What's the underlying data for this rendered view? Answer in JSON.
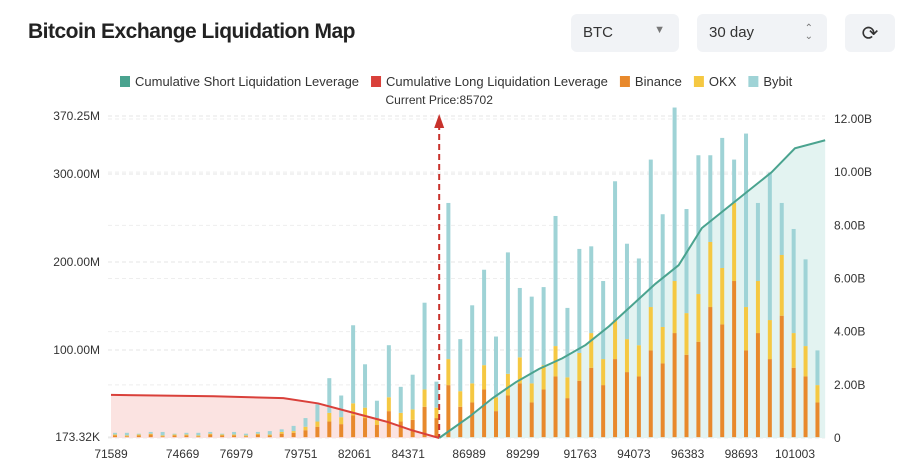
{
  "header": {
    "title": "Bitcoin Exchange Liquidation Map",
    "symbol_select": "BTC",
    "range_select": "30 day",
    "refresh_icon": "refresh-icon"
  },
  "chart_data": {
    "type": "bar",
    "title": "",
    "legend": [
      "Cumulative Short Liquidation Leverage",
      "Cumulative Long Liquidation Leverage",
      "Binance",
      "OKX",
      "Bybit"
    ],
    "legend_placement": "top",
    "colors": {
      "short": "#4aa38f",
      "long": "#d9403a",
      "binance": "#e8892c",
      "okx": "#f5c842",
      "bybit": "#9fd3d6",
      "short_fill": "#e3f3f1",
      "long_fill": "#fbe3e1",
      "price_line": "#c8322c"
    },
    "annotation": "Current Price:85702",
    "current_price": 85702,
    "x_ticks": [
      "71589",
      "74669",
      "76979",
      "79751",
      "82061",
      "84371",
      "86989",
      "89299",
      "91763",
      "94073",
      "96383",
      "98693",
      "101003"
    ],
    "x_range": [
      71589,
      102300
    ],
    "y_left_ticks": [
      "370.25M",
      "300.00M",
      "200.00M",
      "100.00M",
      "173.32K"
    ],
    "y_left_range_M": [
      0.17332,
      370.25
    ],
    "y_right_ticks": [
      "12.00B",
      "10.00B",
      "8.00B",
      "6.00B",
      "4.00B",
      "2.00B",
      "0"
    ],
    "y_right_range_B": [
      0,
      12
    ],
    "grid": true,
    "bar_start": 71589,
    "bar_step": 512,
    "series": [
      {
        "name": "Binance",
        "values": [
          2,
          1,
          2,
          3,
          1,
          2,
          2,
          1,
          3,
          2,
          2,
          1,
          3,
          2,
          4,
          5,
          8,
          12,
          18,
          15,
          25,
          22,
          14,
          30,
          18,
          20,
          35,
          22,
          60,
          35,
          40,
          55,
          30,
          48,
          62,
          40,
          55,
          70,
          45,
          65,
          80,
          60,
          90,
          75,
          70,
          100,
          85,
          120,
          95,
          110,
          150,
          130,
          180,
          100,
          120,
          90,
          140,
          80,
          70,
          40
        ]
      },
      {
        "name": "OKX",
        "values": [
          1,
          1,
          1,
          1,
          1,
          1,
          1,
          1,
          1,
          1,
          1,
          1,
          1,
          1,
          2,
          2,
          4,
          6,
          10,
          8,
          14,
          12,
          8,
          16,
          10,
          12,
          20,
          12,
          30,
          18,
          22,
          28,
          16,
          25,
          30,
          22,
          28,
          35,
          24,
          32,
          40,
          30,
          45,
          38,
          36,
          50,
          42,
          60,
          48,
          55,
          75,
          65,
          90,
          50,
          60,
          45,
          70,
          40,
          35,
          20
        ]
      },
      {
        "name": "Bybit",
        "values": [
          2,
          3,
          1,
          2,
          4,
          1,
          2,
          3,
          2,
          1,
          3,
          2,
          2,
          4,
          3,
          6,
          10,
          20,
          40,
          25,
          90,
          50,
          20,
          60,
          30,
          40,
          100,
          30,
          180,
          60,
          90,
          110,
          70,
          140,
          80,
          100,
          90,
          150,
          80,
          120,
          100,
          90,
          160,
          110,
          100,
          170,
          130,
          200,
          120,
          160,
          100,
          150,
          50,
          200,
          90,
          170,
          60,
          120,
          100,
          40
        ]
      }
    ],
    "cumulative_short": {
      "x": [
        85702,
        87000,
        88000,
        89000,
        90000,
        91000,
        92000,
        93000,
        94000,
        95000,
        96000,
        97000,
        98000,
        99000,
        100000,
        101000,
        102300
      ],
      "y_B": [
        0,
        0.8,
        1.5,
        2.1,
        2.6,
        3.0,
        3.5,
        4.2,
        5.0,
        5.8,
        6.5,
        7.9,
        8.6,
        9.3,
        10.0,
        10.9,
        11.2
      ]
    },
    "cumulative_long": {
      "x": [
        71589,
        76000,
        79000,
        80500,
        82000,
        83500,
        84500,
        85702
      ],
      "y_B": [
        1.62,
        1.57,
        1.5,
        1.3,
        0.95,
        0.6,
        0.3,
        0
      ]
    }
  }
}
